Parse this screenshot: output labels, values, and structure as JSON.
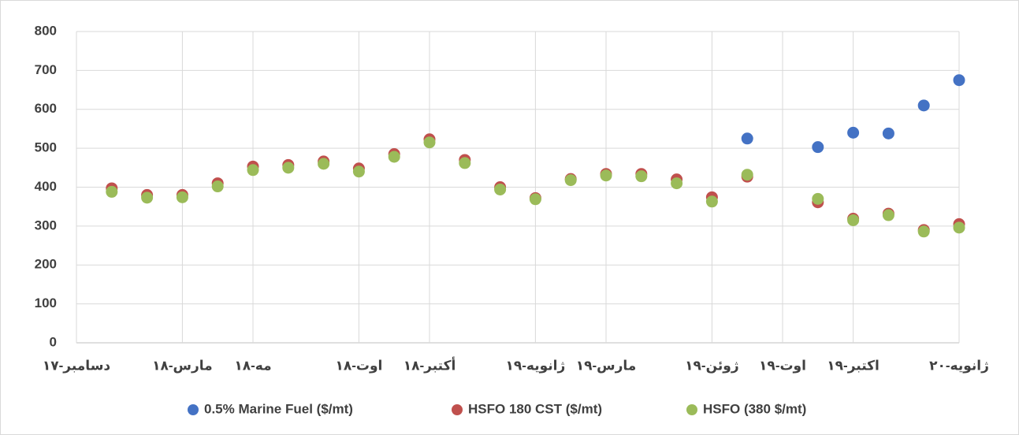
{
  "chart_data": {
    "type": "scatter",
    "x": [
      "2018-01",
      "2018-02",
      "2018-03",
      "2018-04",
      "2018-05",
      "2018-06",
      "2018-07",
      "2018-08",
      "2018-09",
      "2018-10",
      "2018-11",
      "2018-12",
      "2019-01",
      "2019-02",
      "2019-03",
      "2019-04",
      "2019-05",
      "2019-06",
      "2019-07",
      "2019-09",
      "2019-10",
      "2019-11",
      "2019-12",
      "2020-01"
    ],
    "series": [
      {
        "name": "0.5% Marine Fuel ($/mt)",
        "color": "#4472c4",
        "values": [
          null,
          null,
          null,
          null,
          null,
          null,
          null,
          null,
          null,
          null,
          null,
          null,
          null,
          null,
          null,
          null,
          null,
          null,
          525,
          503,
          540,
          538,
          610,
          675
        ]
      },
      {
        "name": "HSFO 180 CST ($/mt)",
        "color": "#c0504d",
        "values": [
          397,
          380,
          380,
          410,
          453,
          457,
          466,
          448,
          485,
          523,
          470,
          400,
          372,
          421,
          434,
          434,
          420,
          374,
          427,
          361,
          319,
          332,
          290,
          305
        ]
      },
      {
        "name": "HSFO (380 $/mt)",
        "color": "#9bbb59",
        "values": [
          388,
          373,
          374,
          402,
          444,
          450,
          460,
          440,
          478,
          515,
          462,
          394,
          369,
          418,
          430,
          428,
          410,
          363,
          432,
          370,
          315,
          328,
          286,
          296
        ]
      }
    ],
    "xlim": [
      "2017-12",
      "2020-01"
    ],
    "xticks": [
      {
        "value": "2017-12",
        "label": "دسامبر-۱۷"
      },
      {
        "value": "2018-03",
        "label": "مارس-۱۸"
      },
      {
        "value": "2018-05",
        "label": "مه-۱۸"
      },
      {
        "value": "2018-08",
        "label": "اوت-۱۸"
      },
      {
        "value": "2018-10",
        "label": "أکتبر-۱۸"
      },
      {
        "value": "2019-01",
        "label": "ژانویه-۱۹"
      },
      {
        "value": "2019-03",
        "label": "مارس-۱۹"
      },
      {
        "value": "2019-06",
        "label": "ژوئن-۱۹"
      },
      {
        "value": "2019-08",
        "label": "اوت-۱۹"
      },
      {
        "value": "2019-10",
        "label": "اکتبر-۱۹"
      },
      {
        "value": "2020-01",
        "label": "ژانویه-۲۰"
      }
    ],
    "ylim": [
      0,
      800
    ],
    "yticks": [
      0,
      100,
      200,
      300,
      400,
      500,
      600,
      700,
      800
    ],
    "grid": true,
    "legend": "bottom"
  }
}
